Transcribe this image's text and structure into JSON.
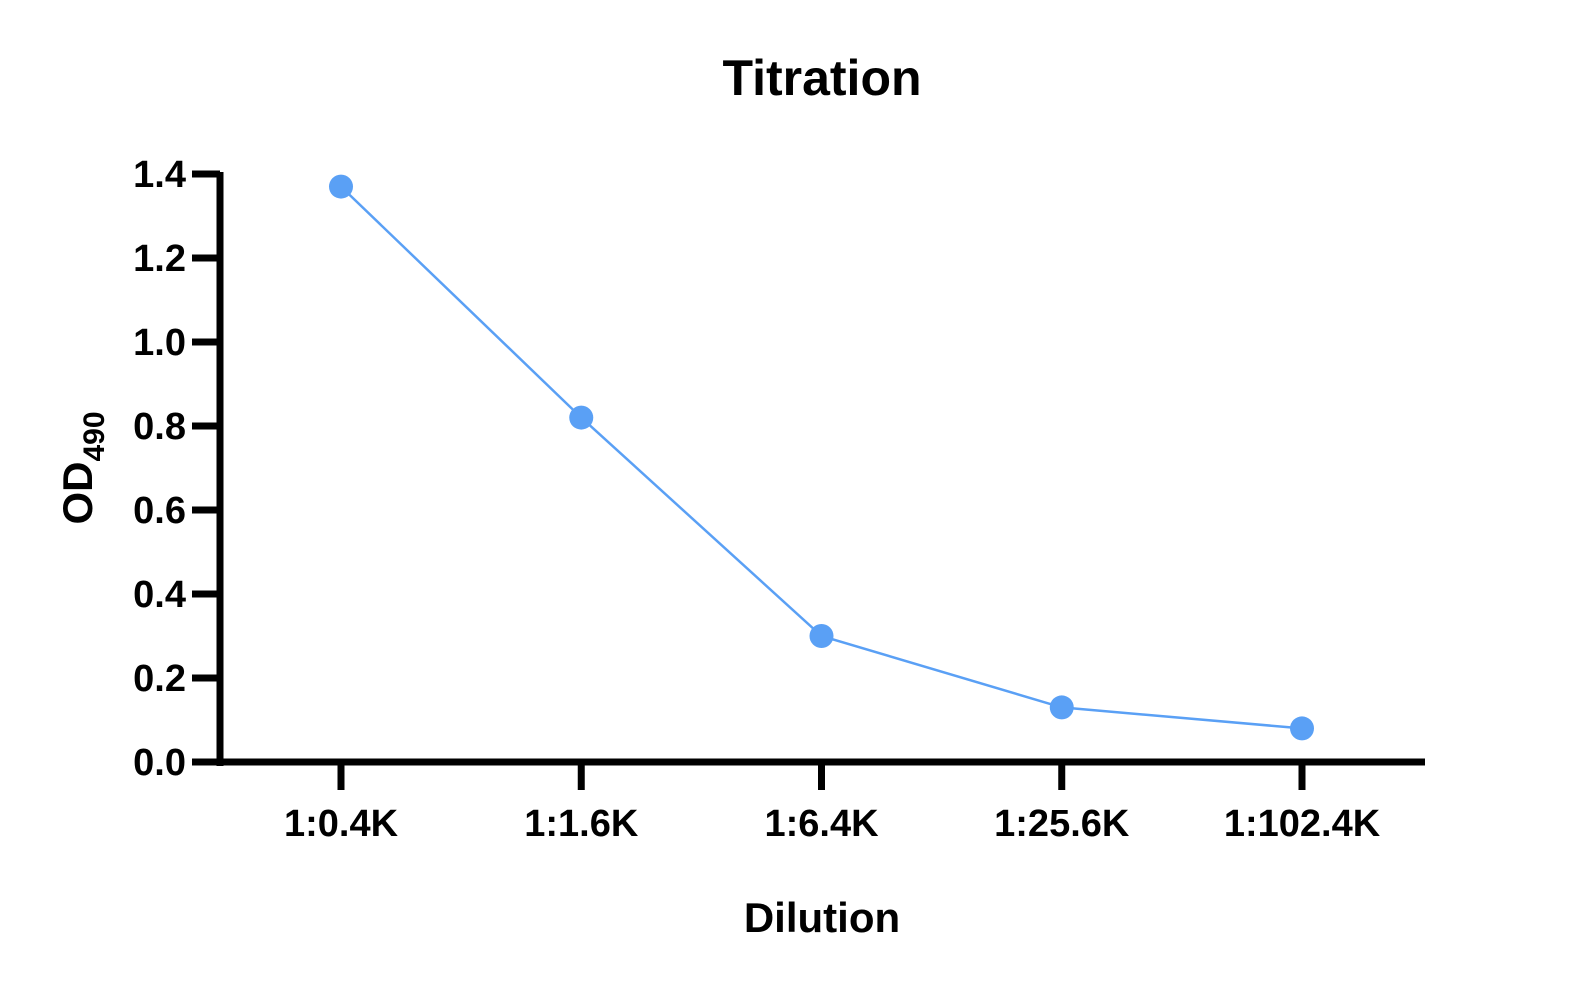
{
  "chart_data": {
    "type": "line",
    "title": "Titration",
    "xlabel": "Dilution",
    "ylabel": "OD",
    "ylabel_subscript": "490",
    "categories": [
      "1:0.4K",
      "1:1.6K",
      "1:6.4K",
      "1:25.6K",
      "1:102.4K"
    ],
    "series": [
      {
        "name": "Titration",
        "values": [
          1.37,
          0.82,
          0.3,
          0.13,
          0.08
        ],
        "color": "#5aa0f5"
      }
    ],
    "ylim": [
      0,
      1.4
    ],
    "yticks": [
      "0.0",
      "0.2",
      "0.4",
      "0.6",
      "0.8",
      "1.0",
      "1.2",
      "1.4"
    ],
    "grid": false,
    "legend": "none"
  }
}
